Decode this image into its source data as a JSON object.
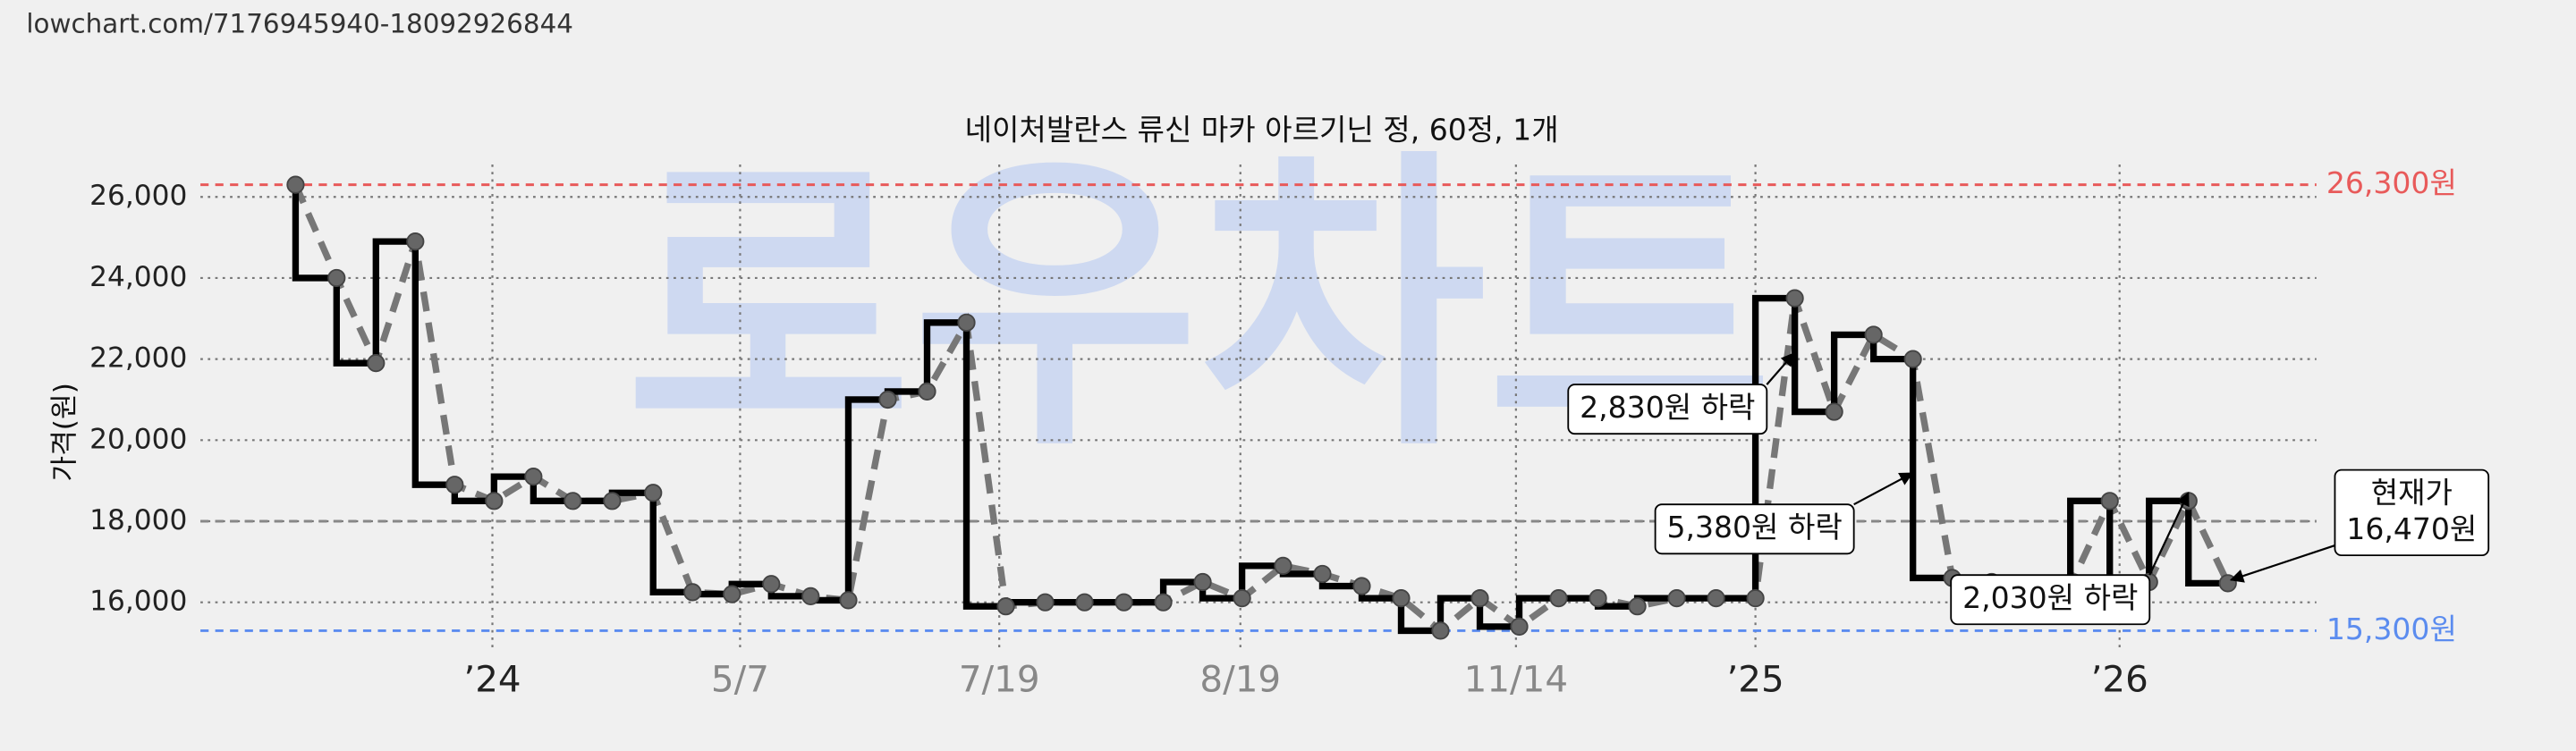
{
  "source": "lowchart.com/7176945940-18092926844",
  "chart_data": {
    "type": "step-line",
    "title": "네이처발란스 류신 마카 아르기닌 정, 60정, 1개",
    "watermark": "로우차트",
    "y_label": "가격(원)",
    "x": [
      178,
      203,
      227,
      251,
      275,
      299,
      323,
      347,
      371,
      396,
      420,
      444,
      468,
      492,
      515,
      539,
      563,
      587,
      611,
      635,
      659,
      683,
      707,
      731,
      755,
      780,
      804,
      828,
      852,
      876,
      900,
      924,
      948,
      972,
      996,
      1020,
      1044,
      1068,
      1092,
      1116,
      1140,
      1164,
      1188,
      1212,
      1236,
      1260,
      1284,
      1308,
      1332,
      1356
    ],
    "values": [
      26300,
      24000,
      21900,
      24900,
      18900,
      18500,
      19100,
      18500,
      18500,
      18700,
      16250,
      16200,
      16450,
      16150,
      16050,
      21000,
      21200,
      22900,
      15900,
      16000,
      16000,
      16000,
      16000,
      16500,
      16100,
      16900,
      16700,
      16400,
      16100,
      15300,
      16100,
      15400,
      16100,
      16100,
      15900,
      16100,
      16100,
      16100,
      23500,
      20700,
      22600,
      22000,
      16600,
      16500,
      16400,
      16400,
      18500,
      16500,
      18500,
      16470
    ],
    "color": "#000000",
    "trend_color": "#777777",
    "xlim": [
      120,
      1410
    ],
    "xticks": [
      {
        "value": 298,
        "label": "’24"
      },
      {
        "value": 449,
        "label": "5/7"
      },
      {
        "value": 607,
        "label": "7/19"
      },
      {
        "value": 754,
        "label": "8/19"
      },
      {
        "value": 922,
        "label": "11/14"
      },
      {
        "value": 1068,
        "label": "’25"
      },
      {
        "value": 1290,
        "label": "’26"
      }
    ],
    "ylim": [
      14850,
      26800
    ],
    "yticks": [
      {
        "value": 16000,
        "label": "16,000"
      },
      {
        "value": 18000,
        "label": "18,000"
      },
      {
        "value": 20000,
        "label": "20,000"
      },
      {
        "value": 22000,
        "label": "22,000"
      },
      {
        "value": 24000,
        "label": "24,000"
      },
      {
        "value": 26000,
        "label": "26,000"
      }
    ],
    "grid": true,
    "hlines": [
      {
        "value": 26300,
        "label": "26,300원",
        "color": "#e85a5a"
      },
      {
        "value": 15300,
        "label": "15,300원",
        "color": "#5b8cef"
      },
      {
        "value": 18000,
        "color": "#888888"
      }
    ],
    "annotations": [
      {
        "lines": [
          "2,830원 하락"
        ]
      },
      {
        "lines": [
          "5,380원 하락"
        ]
      },
      {
        "lines": [
          "2,030원 하락"
        ]
      },
      {
        "lines": [
          "현재가",
          "16,470원"
        ]
      }
    ]
  }
}
